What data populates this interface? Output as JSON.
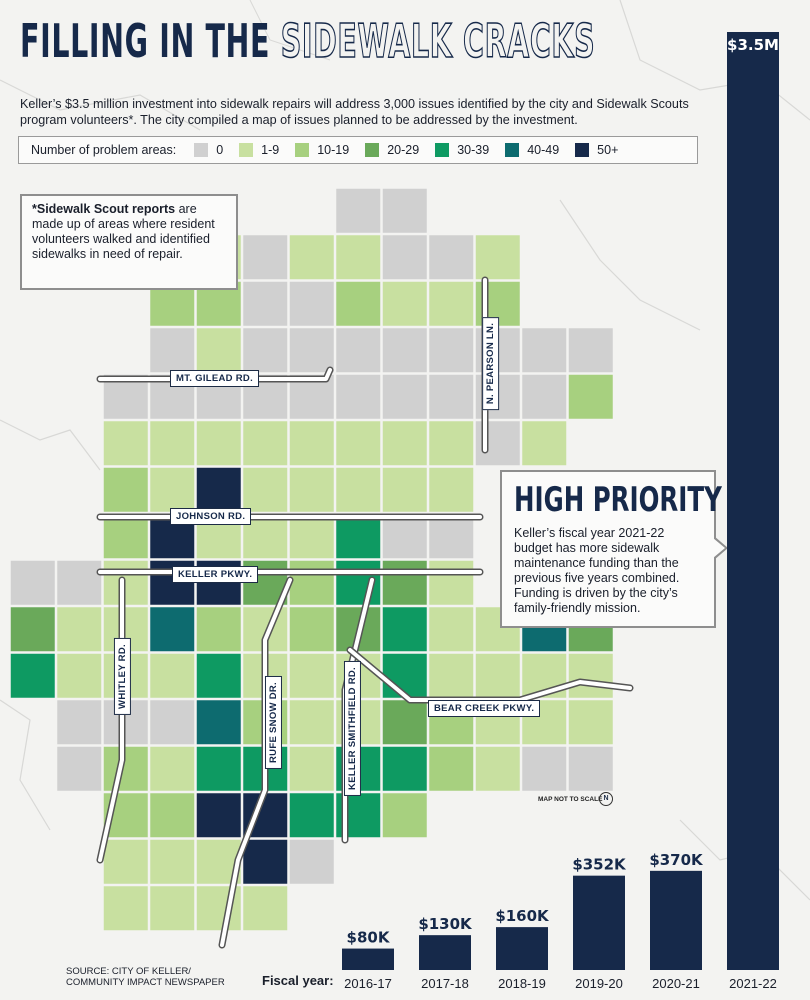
{
  "header": {
    "title_solid": "FILLING IN THE",
    "title_outline": "SIDEWALK CRACKS",
    "subtitle": "Keller’s $3.5 million investment into sidewalk repairs will address 3,000 issues identified by the city and Sidewalk Scouts program volunteers*. The city compiled a map of issues planned to be addressed by the investment."
  },
  "legend": {
    "title": "Number of problem areas:",
    "items": [
      {
        "label": "0",
        "color": "#d0d0d0"
      },
      {
        "label": "1-9",
        "color": "#c8e0a0"
      },
      {
        "label": "10-19",
        "color": "#a7d07f"
      },
      {
        "label": "20-29",
        "color": "#6aa95a"
      },
      {
        "label": "30-39",
        "color": "#0e9a62"
      },
      {
        "label": "40-49",
        "color": "#0d6b6f"
      },
      {
        "label": "50+",
        "color": "#16294a"
      }
    ]
  },
  "note": {
    "bold": "*Sidewalk Scout reports",
    "text": " are made up of areas where resident volunteers walked and identified sidewalks in need of repair."
  },
  "roads": {
    "mt_gilead": "MT. GILEAD RD.",
    "johnson": "JOHNSON RD.",
    "keller_pkwy": "KELLER PKWY.",
    "whitley": "WHITLEY RD.",
    "rufe_snow": "RUFE SNOW DR.",
    "keller_smithfield": "KELLER SMITHFIELD RD.",
    "bear_creek": "BEAR CREEK PKWY.",
    "n_pearson": "N. PEARSON LN."
  },
  "priority": {
    "heading": "HIGH PRIORITY",
    "text": "Keller’s fiscal year 2021-22 budget has more sidewalk maintenance funding than the previous five years combined. Funding is driven by the city’s family-friendly mission."
  },
  "map_note": "MAP NOT TO SCALE",
  "north": "N",
  "source": [
    "SOURCE: CITY OF KELLER/",
    "COMMUNITY IMPACT NEWSPAPER"
  ],
  "fiscal_label": "Fiscal year:",
  "chart_data": {
    "type": "bar",
    "categories": [
      "2016-17",
      "2017-18",
      "2018-19",
      "2019-20",
      "2020-21",
      "2021-22"
    ],
    "values": [
      80000,
      130000,
      160000,
      352000,
      370000,
      3500000
    ],
    "labels": [
      "$80K",
      "$130K",
      "$160K",
      "$352K",
      "$370K",
      "$3.5M"
    ],
    "xlabel": "Fiscal year:",
    "ylabel": "",
    "bar_color": "#16294a"
  },
  "map_grid": [
    [
      "",
      "",
      "",
      "",
      "",
      "",
      "",
      "0",
      "0",
      "",
      "",
      "",
      ""
    ],
    [
      "",
      "",
      "",
      "1",
      "1",
      "0",
      "1",
      "1",
      "0",
      "0",
      "1",
      "",
      ""
    ],
    [
      "",
      "",
      "",
      "2",
      "2",
      "0",
      "0",
      "2",
      "1",
      "1",
      "2",
      "",
      ""
    ],
    [
      "",
      "",
      "",
      "0",
      "1",
      "0",
      "0",
      "0",
      "0",
      "0",
      "0",
      "0",
      "0"
    ],
    [
      "",
      "",
      "0",
      "0",
      "0",
      "0",
      "0",
      "0",
      "0",
      "0",
      "0",
      "0",
      "2"
    ],
    [
      "",
      "",
      "1",
      "1",
      "1",
      "1",
      "1",
      "1",
      "1",
      "1",
      "0",
      "1",
      ""
    ],
    [
      "",
      "",
      "2",
      "1",
      "6",
      "1",
      "1",
      "1",
      "1",
      "1",
      "",
      "",
      ""
    ],
    [
      "",
      "",
      "2",
      "6",
      "1",
      "1",
      "1",
      "4",
      "0",
      "0",
      "",
      "",
      ""
    ],
    [
      "0",
      "0",
      "1",
      "6",
      "6",
      "3",
      "2",
      "4",
      "3",
      "1",
      "",
      "",
      ""
    ],
    [
      "3",
      "1",
      "1",
      "5",
      "2",
      "1",
      "2",
      "3",
      "4",
      "1",
      "1",
      "5",
      "3"
    ],
    [
      "4",
      "1",
      "1",
      "1",
      "4",
      "1",
      "1",
      "1",
      "4",
      "1",
      "1",
      "1",
      "1"
    ],
    [
      "",
      "0",
      "0",
      "0",
      "5",
      "2",
      "1",
      "1",
      "3",
      "2",
      "1",
      "1",
      "1"
    ],
    [
      "",
      "0",
      "2",
      "1",
      "4",
      "4",
      "1",
      "4",
      "4",
      "2",
      "1",
      "0",
      "0"
    ],
    [
      "",
      "",
      "2",
      "2",
      "6",
      "6",
      "4",
      "4",
      "2",
      "",
      "",
      "",
      ""
    ],
    [
      "",
      "",
      "1",
      "1",
      "1",
      "6",
      "0",
      "",
      "",
      "",
      "",
      "",
      ""
    ],
    [
      "",
      "",
      "1",
      "1",
      "1",
      "1",
      "",
      "",
      "",
      "",
      "",
      "",
      ""
    ]
  ]
}
